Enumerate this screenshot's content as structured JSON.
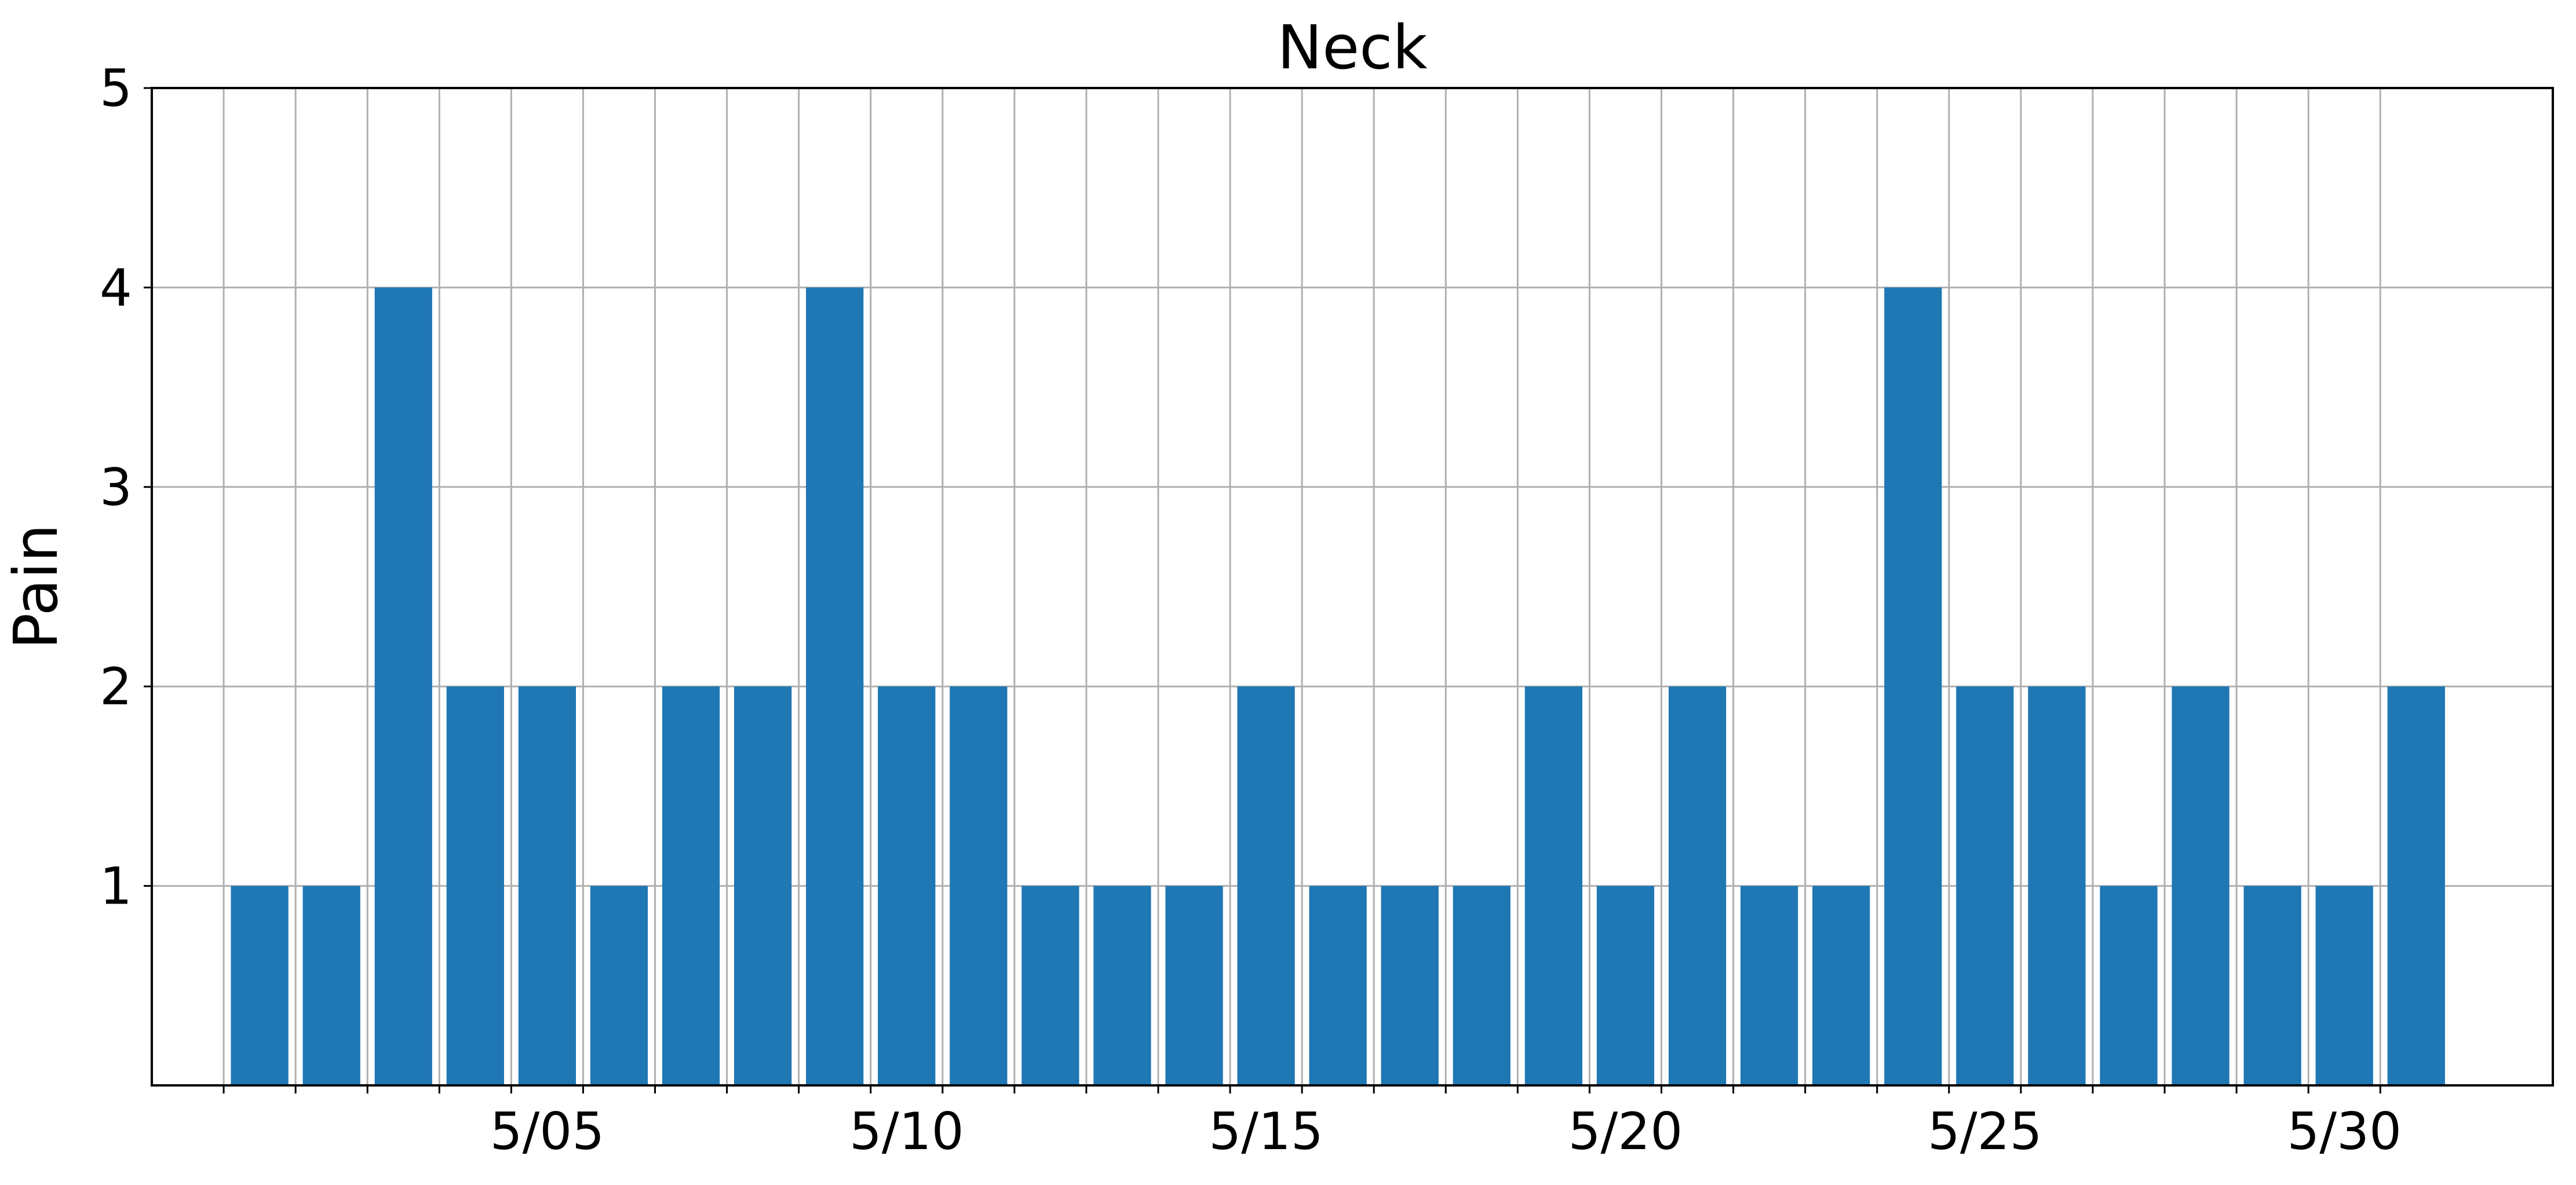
{
  "chart_data": {
    "type": "bar",
    "title": "Neck",
    "xlabel": "",
    "ylabel": "Pain",
    "ylim": [
      0,
      5
    ],
    "y_ticks": [
      1,
      2,
      3,
      4,
      5
    ],
    "grid": true,
    "bar_color": "#1f77b4",
    "categories": [
      "5/01",
      "5/02",
      "5/03",
      "5/04",
      "5/05",
      "5/06",
      "5/07",
      "5/08",
      "5/09",
      "5/10",
      "5/11",
      "5/12",
      "5/13",
      "5/14",
      "5/15",
      "5/16",
      "5/17",
      "5/18",
      "5/19",
      "5/20",
      "5/21",
      "5/22",
      "5/23",
      "5/24",
      "5/25",
      "5/26",
      "5/27",
      "5/28",
      "5/29",
      "5/30",
      "5/31"
    ],
    "x_tick_labels": [
      "5/05",
      "5/10",
      "5/15",
      "5/20",
      "5/25",
      "5/30"
    ],
    "values": [
      1,
      1,
      4,
      2,
      2,
      1,
      2,
      2,
      4,
      2,
      2,
      1,
      1,
      1,
      2,
      1,
      1,
      1,
      2,
      1,
      2,
      1,
      1,
      4,
      2,
      2,
      1,
      2,
      1,
      1,
      2
    ]
  }
}
